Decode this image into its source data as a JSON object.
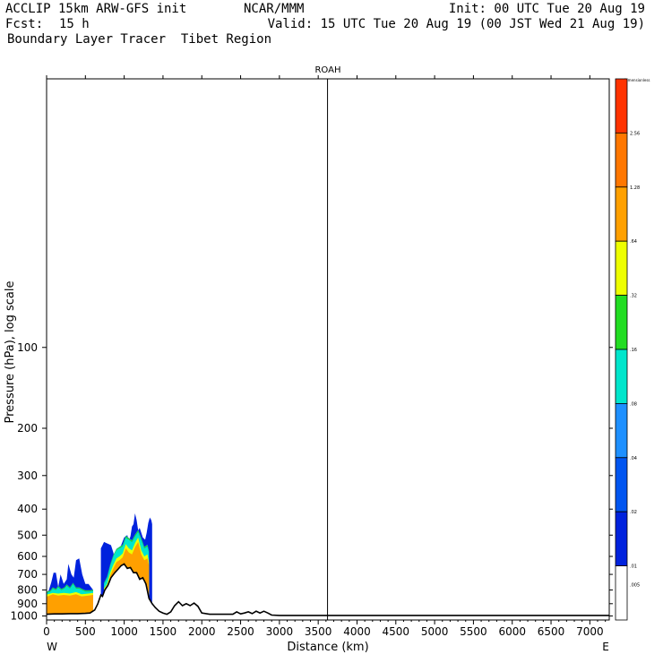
{
  "header": {
    "model": "ACCLIP 15km ARW-GFS init",
    "org": "NCAR/MMM",
    "init": "Init: 00 UTC Tue 20 Aug 19",
    "fcst_label": "Fcst:",
    "fcst_value": "15 h",
    "valid": "Valid: 15 UTC Tue 20 Aug 19 (00 JST Wed 21 Aug 19)",
    "field": "Boundary Layer Tracer  Tibet Region"
  },
  "chart_data": {
    "type": "area",
    "title": "ROAH",
    "xlabel": "Distance (km)",
    "ylabel": "Pressure (hPa), log scale",
    "x_end_labels": {
      "left": "W",
      "right": "E"
    },
    "xlim": [
      0,
      7250
    ],
    "ylim": [
      1035,
      10
    ],
    "y_scale": "log",
    "x_ticks": [
      0,
      500,
      1000,
      1500,
      2000,
      2500,
      3000,
      3500,
      4000,
      4500,
      5000,
      5500,
      6000,
      6500,
      7000
    ],
    "y_ticks": [
      100,
      200,
      300,
      400,
      500,
      600,
      700,
      800,
      900,
      1000
    ],
    "vertical_line_x": 3620,
    "grid": false,
    "colorbar": {
      "title": "Dimensionless",
      "labels": [
        ".005",
        ".01",
        ".02",
        ".04",
        ".08",
        ".16",
        ".32",
        ".64",
        "1.28",
        "2.56",
        ""
      ],
      "colors": [
        "#ffffff",
        "#0022dd",
        "#0055f0",
        "#1e90ff",
        "#00e6cc",
        "#22dd22",
        "#eeff00",
        "#ffa000",
        "#ff7700",
        "#ff3300"
      ]
    },
    "terrain": {
      "name": "surface",
      "x": [
        0,
        100,
        200,
        300,
        400,
        500,
        560,
        620,
        660,
        700,
        720,
        750,
        790,
        830,
        880,
        920,
        960,
        1000,
        1040,
        1080,
        1120,
        1160,
        1200,
        1240,
        1280,
        1320,
        1360,
        1400,
        1450,
        1500,
        1550,
        1600,
        1650,
        1700,
        1750,
        1800,
        1850,
        1900,
        1950,
        2000,
        2100,
        2200,
        2300,
        2400,
        2450,
        2500,
        2550,
        2600,
        2650,
        2700,
        2750,
        2800,
        2850,
        2900,
        3000,
        3200,
        3400,
        3600,
        4000,
        4500,
        5000,
        5500,
        6000,
        6500,
        7000,
        7250
      ],
      "p": [
        985,
        982,
        982,
        980,
        980,
        978,
        975,
        950,
        900,
        835,
        845,
        800,
        770,
        720,
        690,
        670,
        650,
        640,
        665,
        660,
        690,
        690,
        730,
        720,
        760,
        860,
        900,
        930,
        960,
        975,
        985,
        965,
        915,
        885,
        915,
        900,
        915,
        895,
        920,
        975,
        985,
        985,
        985,
        985,
        965,
        982,
        975,
        965,
        980,
        960,
        975,
        960,
        975,
        992,
        995,
        995,
        995,
        995,
        995,
        995,
        995,
        995,
        995,
        995,
        995,
        995
      ]
    },
    "tracer_bands": [
      {
        "name": "1.28",
        "upper": [
          {
            "x": [
              0,
              80,
              150,
              220,
              300,
              380,
              450,
              540,
              600
            ],
            "p": [
              848,
              830,
              840,
              835,
              840,
              830,
              845,
              840,
              835
            ]
          },
          {
            "x": [
              740,
              780,
              820,
              860,
              900,
              940,
              980,
              1020,
              1060,
              1100,
              1140,
              1180,
              1220,
              1260,
              1300,
              1320
            ],
            "p": [
              800,
              780,
              710,
              665,
              630,
              620,
              605,
              560,
              580,
              590,
              555,
              530,
              590,
              620,
              610,
              650
            ]
          }
        ]
      },
      {
        "name": "0.64",
        "upper": [
          {
            "x": [
              0,
              80,
              150,
              220,
              300,
              380,
              450,
              540,
              600
            ],
            "p": [
              832,
              820,
              825,
              820,
              825,
              815,
              830,
              825,
              820
            ]
          },
          {
            "x": [
              740,
              780,
              820,
              860,
              900,
              940,
              980,
              1020,
              1060,
              1100,
              1140,
              1180,
              1220,
              1260,
              1300,
              1320
            ],
            "p": [
              790,
              760,
              690,
              645,
              610,
              600,
              585,
              540,
              560,
              570,
              535,
              510,
              570,
              600,
              590,
              630
            ]
          }
        ]
      },
      {
        "name": "0.16",
        "upper": [
          {
            "x": [
              0,
              50,
              80,
              120,
              150,
              190,
              230,
              260,
              300,
              340,
              380,
              420,
              460,
              500,
              560,
              600
            ],
            "p": [
              820,
              810,
              790,
              800,
              780,
              800,
              790,
              770,
              790,
              760,
              790,
              790,
              800,
              810,
              810,
              805
            ]
          },
          {
            "x": [
              740,
              780,
              820,
              860,
              900,
              940,
              980,
              1020,
              1060,
              1100,
              1140,
              1180,
              1220,
              1260,
              1300,
              1320
            ],
            "p": [
              760,
              720,
              650,
              600,
              570,
              560,
              550,
              510,
              520,
              530,
              505,
              485,
              520,
              560,
              550,
              580
            ]
          }
        ]
      },
      {
        "name": "0.01",
        "upper": [
          {
            "x": [
              0,
              30,
              60,
              90,
              120,
              150,
              180,
              220,
              260,
              280,
              320,
              350,
              380,
              420,
              460,
              500,
              540,
              600
            ],
            "p": [
              820,
              800,
              750,
              690,
              690,
              780,
              700,
              760,
              730,
              640,
              700,
              720,
              620,
              610,
              700,
              760,
              760,
              800
            ]
          },
          {
            "x": [
              700,
              720,
              740,
              770,
              800,
              830,
              860,
              880,
              920,
              960,
              1000,
              1040,
              1060,
              1080,
              1100,
              1120,
              1140,
              1160,
              1180,
              1200,
              1240,
              1270,
              1290,
              1310,
              1330,
              1350,
              1360
            ],
            "p": [
              560,
              545,
              530,
              535,
              540,
              545,
              580,
              620,
              575,
              545,
              510,
              500,
              525,
              505,
              465,
              455,
              415,
              440,
              480,
              470,
              510,
              520,
              490,
              450,
              430,
              440,
              455
            ]
          }
        ]
      }
    ]
  }
}
